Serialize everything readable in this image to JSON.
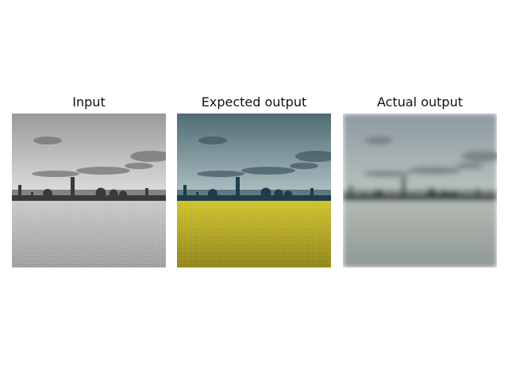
{
  "panels": [
    {
      "title": "Input",
      "style": "grayscale",
      "colors": {
        "sky_top": "#9a9a9a",
        "sky_bottom": "#e4e4e4",
        "horizon": "#3a3a3a",
        "field_top": "#c9c9c9",
        "field_bottom": "#9d9d9d",
        "cloud": "#6d6d6d"
      }
    },
    {
      "title": "Expected output",
      "style": "color",
      "colors": {
        "sky_top": "#4f6b73",
        "sky_bottom": "#b9c9cc",
        "horizon": "#1f3c4c",
        "field_top": "#cfc22b",
        "field_bottom": "#8f8317",
        "cloud": "#3e5663"
      }
    },
    {
      "title": "Actual output",
      "style": "blurred",
      "colors": {
        "sky_top": "#8c9aa0",
        "sky_bottom": "#c0c6c3",
        "horizon": "#3d4944",
        "field_top": "#b3b9b3",
        "field_bottom": "#8f9894",
        "cloud": "#667276"
      }
    }
  ]
}
